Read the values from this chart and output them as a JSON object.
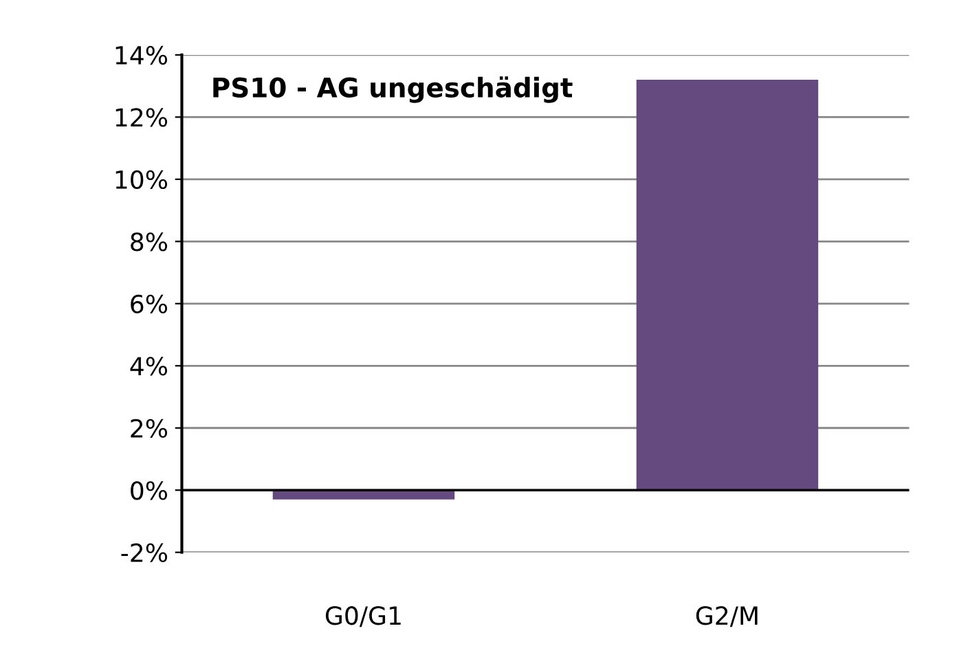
{
  "chart_data": {
    "type": "bar",
    "annotations": [
      "PS10 - AG ungeschädigt"
    ],
    "categories": [
      "G0/G1",
      "G2/M"
    ],
    "values": [
      -0.3,
      13.2
    ],
    "color": "#654a80",
    "ylim": [
      -2,
      14
    ],
    "yticks": [
      {
        "value": -2,
        "label": "-2%"
      },
      {
        "value": 0,
        "label": "0%"
      },
      {
        "value": 2,
        "label": "2%"
      },
      {
        "value": 4,
        "label": "4%"
      },
      {
        "value": 6,
        "label": "6%"
      },
      {
        "value": 8,
        "label": "8%"
      },
      {
        "value": 10,
        "label": "10%"
      },
      {
        "value": 12,
        "label": "12%"
      },
      {
        "value": 14,
        "label": "14%"
      }
    ],
    "grid": "y"
  }
}
